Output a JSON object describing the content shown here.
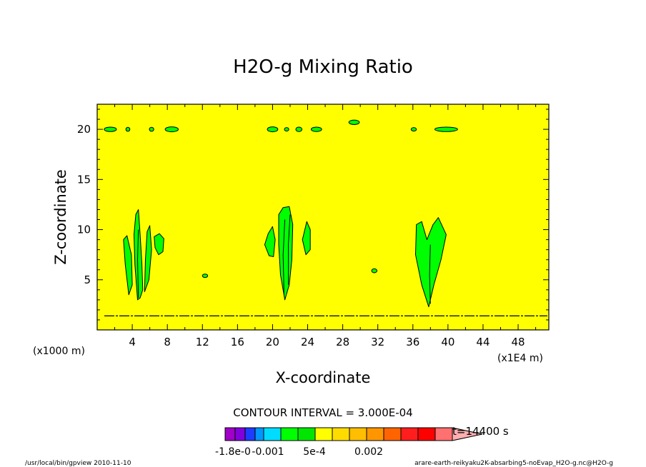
{
  "chart_data": {
    "type": "heatmap",
    "title": "H2O-g Mixing Ratio",
    "xlabel": "X-coordinate",
    "ylabel": "Z-coordinate",
    "x_unit": "(x1E4 m)",
    "y_unit": "(x1000 m)",
    "xlim": [
      0,
      51.5
    ],
    "ylim": [
      0,
      22.5
    ],
    "x_ticks": [
      4,
      8,
      12,
      16,
      20,
      24,
      28,
      32,
      36,
      40,
      44,
      48
    ],
    "y_ticks": [
      5,
      10,
      15,
      20
    ],
    "contour_interval_text": "CONTOUR INTERVAL = 3.000E-04",
    "time_text": "t=14400 s",
    "background_color": "#ffff00",
    "colorbar": {
      "colors": [
        "#a000c8",
        "#8200dc",
        "#1e3cff",
        "#0096ff",
        "#00dcff",
        "#00ff00",
        "#00e600",
        "#ffff00",
        "#ffdc00",
        "#ffbe00",
        "#ff9600",
        "#ff6400",
        "#ff1e1e",
        "#ff0000",
        "#ff7070",
        "#ffafaf"
      ],
      "labels": [
        "-1.8e-0",
        "-0.001",
        "5e-4",
        "0.002"
      ]
    },
    "green_regions": [
      {
        "x": 1.5,
        "y": 20.0,
        "w": 1.4,
        "h": 0.45
      },
      {
        "x": 3.5,
        "y": 20.0,
        "w": 0.45,
        "h": 0.4
      },
      {
        "x": 6.2,
        "y": 20.0,
        "w": 0.5,
        "h": 0.4
      },
      {
        "x": 8.5,
        "y": 20.0,
        "w": 1.5,
        "h": 0.5
      },
      {
        "x": 20.0,
        "y": 20.0,
        "w": 1.2,
        "h": 0.5
      },
      {
        "x": 21.6,
        "y": 20.0,
        "w": 0.5,
        "h": 0.35
      },
      {
        "x": 23.0,
        "y": 20.0,
        "w": 0.7,
        "h": 0.45
      },
      {
        "x": 25.0,
        "y": 20.0,
        "w": 1.2,
        "h": 0.45
      },
      {
        "x": 29.3,
        "y": 20.7,
        "w": 1.2,
        "h": 0.45
      },
      {
        "x": 36.1,
        "y": 20.0,
        "w": 0.6,
        "h": 0.35
      },
      {
        "x": 39.8,
        "y": 20.0,
        "w": 2.6,
        "h": 0.45
      },
      {
        "x": 12.3,
        "y": 5.4,
        "w": 0.6,
        "h": 0.35
      },
      {
        "x": 31.6,
        "y": 5.9,
        "w": 0.6,
        "h": 0.4
      }
    ],
    "plumes": [
      {
        "points": [
          [
            3.6,
            3.5
          ],
          [
            3.2,
            6.5
          ],
          [
            3.0,
            9.0
          ],
          [
            3.4,
            9.4
          ],
          [
            3.9,
            7.5
          ],
          [
            4.0,
            4.5
          ]
        ]
      },
      {
        "points": [
          [
            4.6,
            3.0
          ],
          [
            4.3,
            6.5
          ],
          [
            4.2,
            9.5
          ],
          [
            4.4,
            11.5
          ],
          [
            4.7,
            12.0
          ],
          [
            4.9,
            9.5
          ],
          [
            5.1,
            6.5
          ],
          [
            5.2,
            4.0
          ],
          [
            4.9,
            3.2
          ]
        ]
      },
      {
        "points": [
          [
            5.4,
            3.8
          ],
          [
            5.5,
            7.0
          ],
          [
            5.7,
            9.8
          ],
          [
            6.0,
            10.4
          ],
          [
            6.2,
            8.0
          ],
          [
            5.9,
            5.0
          ]
        ]
      },
      {
        "points": [
          [
            6.6,
            8.2
          ],
          [
            6.5,
            9.3
          ],
          [
            7.1,
            9.6
          ],
          [
            7.6,
            9.1
          ],
          [
            7.5,
            7.8
          ],
          [
            7.0,
            7.5
          ]
        ]
      },
      {
        "points": [
          [
            19.1,
            8.5
          ],
          [
            19.5,
            9.6
          ],
          [
            20.0,
            10.3
          ],
          [
            20.3,
            9.0
          ],
          [
            20.1,
            7.3
          ],
          [
            19.6,
            7.4
          ]
        ]
      },
      {
        "points": [
          [
            21.4,
            3.0
          ],
          [
            20.9,
            5.5
          ],
          [
            20.7,
            8.5
          ],
          [
            20.7,
            11.5
          ],
          [
            21.2,
            12.2
          ],
          [
            21.9,
            12.3
          ],
          [
            22.3,
            10.5
          ],
          [
            22.2,
            7.0
          ],
          [
            21.9,
            4.5
          ]
        ]
      },
      {
        "points": [
          [
            23.8,
            7.5
          ],
          [
            23.4,
            9.0
          ],
          [
            23.9,
            10.8
          ],
          [
            24.3,
            10.0
          ],
          [
            24.3,
            8.0
          ]
        ]
      },
      {
        "points": [
          [
            37.8,
            2.3
          ],
          [
            37.0,
            4.5
          ],
          [
            36.3,
            7.5
          ],
          [
            36.4,
            10.5
          ],
          [
            37.0,
            10.8
          ],
          [
            37.6,
            9.0
          ],
          [
            38.3,
            10.5
          ],
          [
            38.9,
            11.2
          ],
          [
            39.8,
            9.5
          ],
          [
            39.2,
            7.0
          ],
          [
            38.4,
            4.5
          ]
        ]
      }
    ],
    "plume_inner_lines": [
      {
        "points": [
          [
            4.7,
            3.2
          ],
          [
            4.6,
            7.0
          ],
          [
            4.7,
            10.0
          ]
        ]
      },
      {
        "points": [
          [
            21.3,
            3.5
          ],
          [
            21.2,
            7.5
          ],
          [
            21.4,
            11.0
          ]
        ]
      },
      {
        "points": [
          [
            21.8,
            4.5
          ],
          [
            21.8,
            8.5
          ],
          [
            22.0,
            11.5
          ]
        ]
      },
      {
        "points": [
          [
            38.0,
            2.6
          ],
          [
            37.9,
            5.5
          ],
          [
            38.0,
            8.5
          ]
        ]
      }
    ],
    "surface_line_z": 1.4
  },
  "footer": {
    "left": "/usr/local/bin/gpview  2010-11-10",
    "right": "arare-earth-reikyaku2K-absarbing5-noEvap_H2O-g.nc@H2O-g"
  }
}
